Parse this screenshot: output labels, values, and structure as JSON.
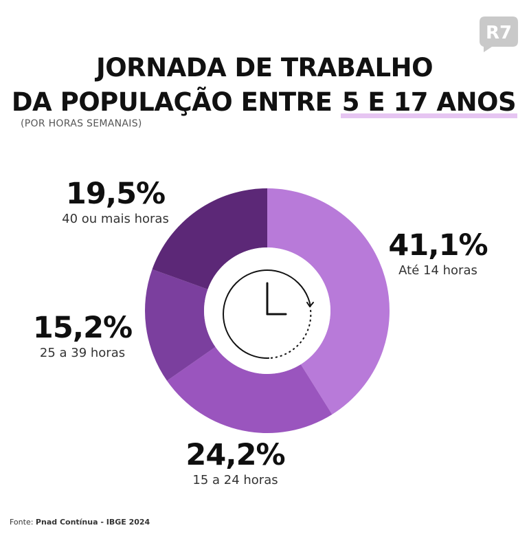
{
  "brand": {
    "logo_text": "R7"
  },
  "header": {
    "title_line1": "JORNADA DE TRABALHO",
    "title_line2_prefix": "DA POPULAÇÃO ENTRE",
    "title_line2_highlight": "5 E 17 ANOS",
    "subtitle": "(POR HORAS SEMANAIS)"
  },
  "chart_data": {
    "type": "pie",
    "title": "JORNADA DE TRABALHO DA POPULAÇÃO ENTRE 5 E 17 ANOS",
    "subtitle": "(POR HORAS SEMANAIS)",
    "categories": [
      "Até 14 horas",
      "15 a 24 horas",
      "25 a 39 horas",
      "40 ou mais horas"
    ],
    "values": [
      41.1,
      24.2,
      15.2,
      19.5
    ],
    "value_labels": [
      "41,1%",
      "24,2%",
      "15,2%",
      "19,5%"
    ],
    "colors": [
      "#b87ad9",
      "#9a55be",
      "#7b3f9e",
      "#5c2877"
    ],
    "donut": true,
    "center_icon": "clock-icon"
  },
  "footer": {
    "source_prefix": "Fonte: ",
    "source_name": "Pnad Contínua - IBGE 2024"
  }
}
